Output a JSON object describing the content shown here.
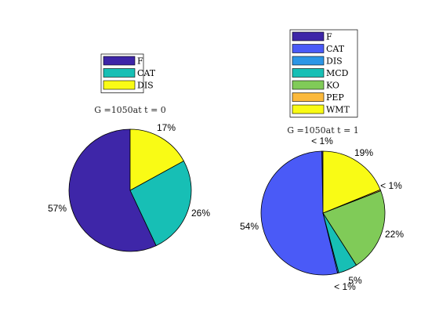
{
  "chart_data": [
    {
      "type": "pie",
      "title": "G =1050at t = 0",
      "legend_placement": "top",
      "slices": [
        {
          "name": "F",
          "value": 57,
          "label": "57%",
          "color": "#3e26a8"
        },
        {
          "name": "CAT",
          "value": 26,
          "label": "26%",
          "color": "#17bfb5"
        },
        {
          "name": "DIS",
          "value": 17,
          "label": "17%",
          "color": "#f9fb15"
        }
      ]
    },
    {
      "type": "pie",
      "title": "G =1050at t = 1",
      "legend_placement": "top",
      "slices": [
        {
          "name": "F",
          "value": 0.3,
          "label": "< 1%",
          "color": "#3e26a8"
        },
        {
          "name": "CAT",
          "value": 54,
          "label": "54%",
          "color": "#4a5af7"
        },
        {
          "name": "DIS",
          "value": 0.3,
          "label": "< 1%",
          "color": "#2c96e6"
        },
        {
          "name": "MCD",
          "value": 5,
          "label": "5%",
          "color": "#17bfb5"
        },
        {
          "name": "KO",
          "value": 22,
          "label": "22%",
          "color": "#80cb58"
        },
        {
          "name": "PEP",
          "value": 0.3,
          "label": "< 1%",
          "color": "#fbb93c"
        },
        {
          "name": "WMT",
          "value": 19,
          "label": "19%",
          "color": "#f9fb15"
        }
      ]
    }
  ]
}
